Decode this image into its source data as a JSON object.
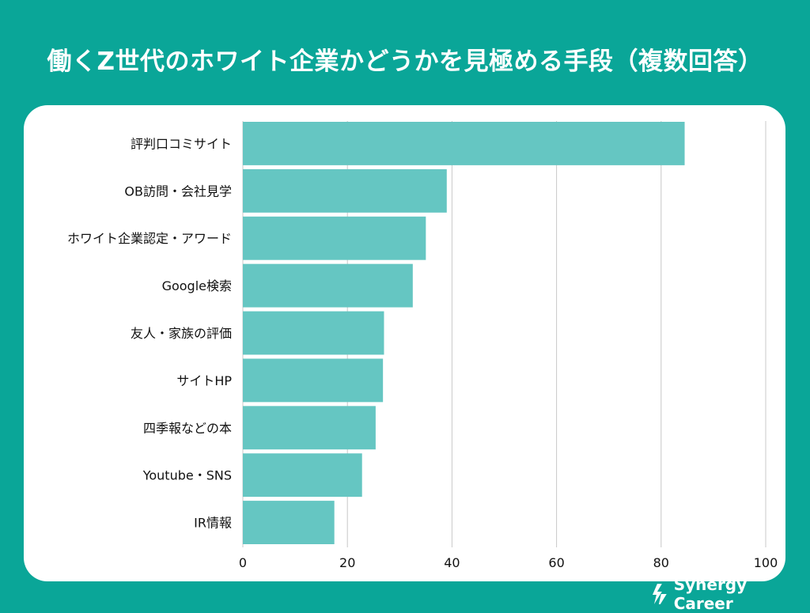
{
  "chart_data": {
    "type": "bar",
    "orientation": "horizontal",
    "title": "働くZ世代のホワイト企業かどうかを見極める手段（複数回答）",
    "categories": [
      "評判口コミサイト",
      "OB訪問・会社見学",
      "ホワイト企業認定・アワード",
      "Google検索",
      "友人・家族の評価",
      "サイトHP",
      "四季報などの本",
      "Youtube・SNS",
      "IR情報"
    ],
    "values": [
      84.5,
      39,
      35,
      32.5,
      27,
      26.8,
      25.4,
      22.8,
      17.5
    ],
    "xlim": [
      0,
      100
    ],
    "xticks": [
      0,
      20,
      40,
      60,
      80,
      100
    ],
    "xlabel": "",
    "ylabel": "",
    "grid": true,
    "bar_color": "#65c6c2"
  },
  "brand": {
    "name": "Synergy Career"
  },
  "colors": {
    "background": "#0aa698",
    "card": "#ffffff",
    "grid": "#c8c8c8"
  }
}
